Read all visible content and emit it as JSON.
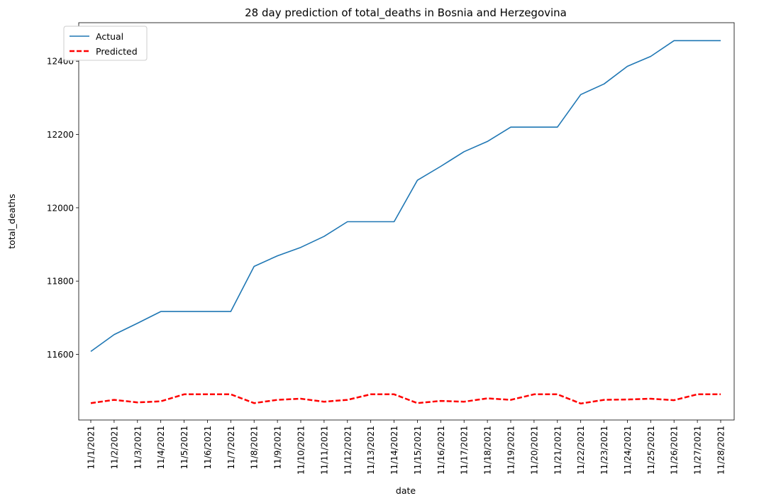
{
  "chart_data": {
    "type": "line",
    "title": "28 day prediction of total_deaths in Bosnia and Herzegovina",
    "xlabel": "date",
    "ylabel": "total_deaths",
    "categories": [
      "11/1/2021",
      "11/2/2021",
      "11/3/2021",
      "11/4/2021",
      "11/5/2021",
      "11/6/2021",
      "11/7/2021",
      "11/8/2021",
      "11/9/2021",
      "11/10/2021",
      "11/11/2021",
      "11/12/2021",
      "11/13/2021",
      "11/14/2021",
      "11/15/2021",
      "11/16/2021",
      "11/17/2021",
      "11/18/2021",
      "11/19/2021",
      "11/20/2021",
      "11/21/2021",
      "11/22/2021",
      "11/23/2021",
      "11/24/2021",
      "11/25/2021",
      "11/26/2021",
      "11/27/2021",
      "11/28/2021"
    ],
    "yticks": [
      11600,
      11800,
      12000,
      12200,
      12400
    ],
    "ylim": [
      11421,
      12505
    ],
    "series": [
      {
        "name": "Actual",
        "color": "#1f77b4",
        "style": "solid",
        "values": [
          11608,
          11654,
          11685,
          11717,
          11717,
          11717,
          11717,
          11840,
          11869,
          11892,
          11922,
          11962,
          11962,
          11962,
          12075,
          12113,
          12153,
          12181,
          12220,
          12220,
          12220,
          12309,
          12338,
          12386,
          12413,
          12456,
          12456,
          12456
        ]
      },
      {
        "name": "Predicted",
        "color": "#ff0000",
        "style": "dashed",
        "values": [
          11467,
          11476,
          11469,
          11472,
          11491,
          11491,
          11491,
          11467,
          11476,
          11479,
          11471,
          11476,
          11491,
          11491,
          11467,
          11473,
          11471,
          11480,
          11476,
          11491,
          11491,
          11466,
          11476,
          11477,
          11479,
          11475,
          11491,
          11491
        ]
      }
    ],
    "legend_position": "top-left",
    "grid": false
  }
}
